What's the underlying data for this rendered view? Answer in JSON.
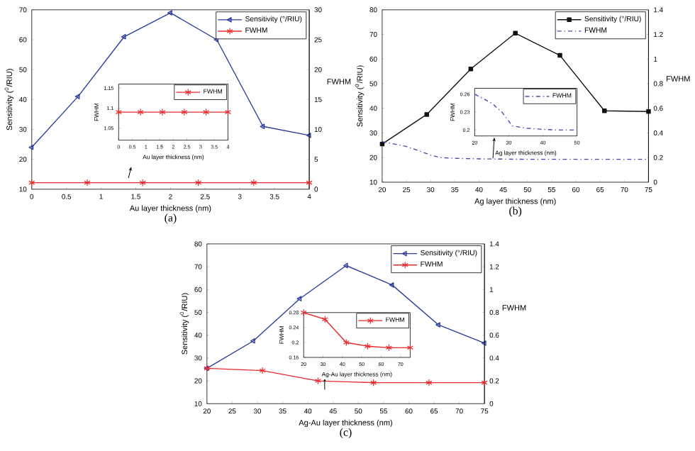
{
  "chart_data": [
    {
      "type": "line",
      "title": "(a)",
      "xlabel": "Au layer thickness (nm)",
      "ylabel": "Sensitivity ($^{0}$/RIU)",
      "y2label": "FWHM",
      "xlim": [
        0,
        4
      ],
      "xticks": [
        0,
        0.5,
        1,
        1.5,
        2,
        2.5,
        3,
        3.5,
        4
      ],
      "ylim": [
        10,
        70
      ],
      "yticks": [
        10,
        20,
        30,
        40,
        50,
        60,
        70
      ],
      "y2lim": [
        0,
        30
      ],
      "y2ticks": [
        0,
        5,
        10,
        15,
        20,
        25,
        30
      ],
      "legend": "top right",
      "series": [
        {
          "name": "Sensitivity (°/RIU)",
          "color": "#2a3d9c",
          "marker": "triangle",
          "x": [
            0,
            0.667,
            1.333,
            2,
            2.667,
            3.333,
            4
          ],
          "values": [
            24,
            41,
            61,
            69,
            60,
            31,
            28
          ]
        },
        {
          "name": "FWHM",
          "color": "#e8282a",
          "marker": "cross",
          "axis": "y2",
          "x": [
            0,
            0.8,
            1.6,
            2.4,
            3.2,
            4
          ],
          "values": [
            1.09,
            1.09,
            1.09,
            1.09,
            1.09,
            1.09
          ]
        }
      ]
    },
    {
      "type": "line",
      "xlabel": "Au layer thickness (nm)",
      "ylabel": "FWHM",
      "xlim": [
        0,
        4
      ],
      "xticks": [
        0,
        0.5,
        1,
        1.5,
        2,
        2.5,
        3,
        3.5,
        4
      ],
      "ylim": [
        1.02,
        1.16
      ],
      "yticks": [
        1.05,
        1.1,
        1.15
      ],
      "legend": "top right",
      "series": [
        {
          "name": "FWHM",
          "color": "#e8282a",
          "marker": "cross",
          "x": [
            0,
            0.8,
            1.6,
            2.4,
            3.2,
            4
          ],
          "values": [
            1.09,
            1.09,
            1.09,
            1.09,
            1.09,
            1.09
          ]
        }
      ]
    },
    {
      "type": "line",
      "title": "(b)",
      "xlabel": "Ag layer thickness (nm)",
      "ylabel": "Sensitivity ($^{0}$/RIU)",
      "y2label": "FWHM",
      "xlim": [
        20,
        75
      ],
      "xticks": [
        20,
        25,
        30,
        35,
        40,
        45,
        50,
        55,
        60,
        65,
        70,
        75
      ],
      "ylim": [
        10,
        80
      ],
      "yticks": [
        10,
        20,
        30,
        40,
        50,
        60,
        70,
        80
      ],
      "y2lim": [
        0,
        1.4
      ],
      "y2ticks": [
        0,
        0.2,
        0.4,
        0.6,
        0.8,
        1,
        1.2,
        1.4
      ],
      "legend": "top right",
      "series": [
        {
          "name": "Sensitivity (°/RIU)",
          "color": "#111111",
          "marker": "square",
          "x": [
            20,
            29.2,
            38.3,
            47.5,
            56.7,
            65.9,
            75
          ],
          "values": [
            25.5,
            37.5,
            56,
            70.5,
            61.5,
            39,
            38.7
          ]
        },
        {
          "name": "FWHM",
          "color": "#4a4aa8",
          "marker": "none",
          "line_style": "dashed",
          "axis": "y2",
          "x": [
            20,
            25,
            28,
            30,
            32,
            35,
            40,
            50,
            60,
            75
          ],
          "values": [
            0.33,
            0.29,
            0.25,
            0.22,
            0.2,
            0.194,
            0.19,
            0.186,
            0.186,
            0.186
          ]
        }
      ]
    },
    {
      "type": "line",
      "xlabel": "Ag layer thickness (nm)",
      "ylabel": "FWHM",
      "xlim": [
        20,
        50
      ],
      "xticks": [
        20,
        30,
        40,
        50
      ],
      "ylim": [
        0.19,
        0.27
      ],
      "yticks": [
        0.2,
        0.23,
        0.26
      ],
      "legend": "top right",
      "series": [
        {
          "name": "FWHM",
          "color": "#4a4aa8",
          "marker": "none",
          "line_style": "dashed",
          "x": [
            20,
            25,
            28,
            31,
            35,
            40,
            45,
            50
          ],
          "values": [
            0.26,
            0.245,
            0.23,
            0.207,
            0.203,
            0.201,
            0.2,
            0.2
          ]
        }
      ]
    },
    {
      "type": "line",
      "title": "(c)",
      "xlabel": "Ag-Au layer thickness (nm)",
      "ylabel": "Sensitivity ($^{0}$/RIU)",
      "y2label": "FWHM",
      "xlim": [
        20,
        75
      ],
      "xticks": [
        20,
        25,
        30,
        35,
        40,
        45,
        50,
        55,
        60,
        65,
        70,
        75
      ],
      "ylim": [
        10,
        80
      ],
      "yticks": [
        10,
        20,
        30,
        40,
        50,
        60,
        70,
        80
      ],
      "y2lim": [
        0,
        1.4
      ],
      "y2ticks": [
        0,
        0.2,
        0.4,
        0.6,
        0.8,
        1,
        1.2,
        1.4
      ],
      "legend": "top right",
      "series": [
        {
          "name": "Sensitivity (°/RIU)",
          "color": "#2a3d9c",
          "marker": "triangle",
          "x": [
            20,
            29.2,
            38.4,
            47.6,
            56.7,
            65.9,
            75
          ],
          "values": [
            25.5,
            37.5,
            56,
            70.5,
            62,
            44.5,
            36.5
          ]
        },
        {
          "name": "FWHM",
          "color": "#e8282a",
          "marker": "cross",
          "axis": "y2",
          "x": [
            20,
            31,
            42,
            53,
            64,
            75
          ],
          "values": [
            0.31,
            0.29,
            0.2,
            0.184,
            0.184,
            0.184
          ]
        }
      ]
    },
    {
      "type": "line",
      "xlabel": "Ag-Au layer thickness (nm)",
      "ylabel": "FWHM",
      "xlim": [
        20,
        75
      ],
      "xticks": [
        20,
        30,
        40,
        50,
        60,
        70
      ],
      "ylim": [
        0.16,
        0.28
      ],
      "yticks": [
        0.16,
        0.2,
        0.24,
        0.28
      ],
      "legend": "top right",
      "series": [
        {
          "name": "FWHM",
          "color": "#e8282a",
          "marker": "cross",
          "x": [
            20,
            31,
            42,
            53,
            64,
            75
          ],
          "values": [
            0.28,
            0.262,
            0.2,
            0.19,
            0.186,
            0.186
          ]
        }
      ]
    }
  ]
}
